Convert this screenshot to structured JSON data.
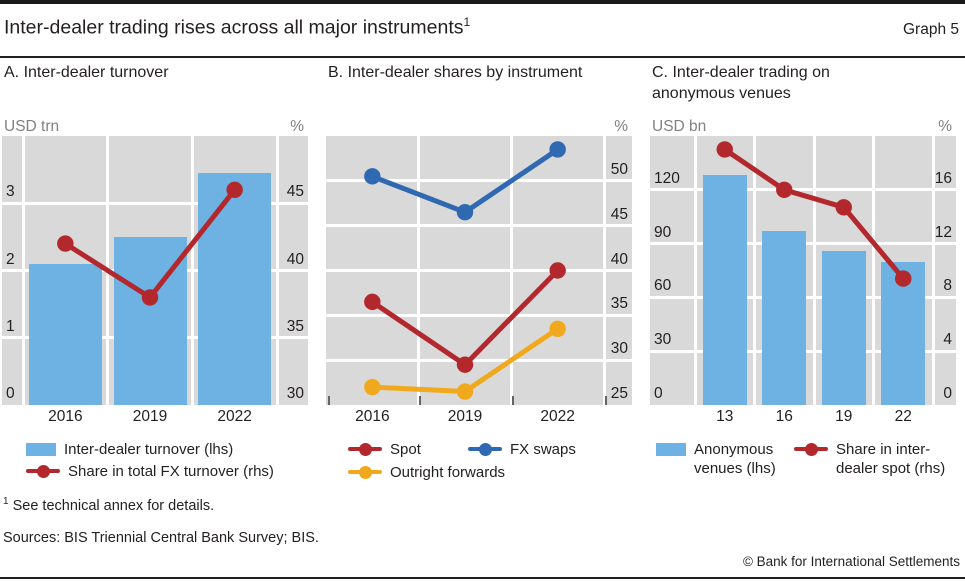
{
  "header": {
    "title": "Inter-dealer trading rises across all major instruments",
    "title_superscript": "1",
    "graph_label": "Graph 5"
  },
  "colors": {
    "bar": "#6eb2e3",
    "red": "#b2282d",
    "blue": "#2f69b1",
    "yellow": "#f0a91d",
    "plot_bg": "#d9d9d9",
    "grid": "#ffffff",
    "text": "#231f20",
    "muted": "#7f8184"
  },
  "chart_data": [
    {
      "type": "bar+line",
      "title": "A. Inter-dealer turnover",
      "unit_left": "USD trn",
      "unit_right": "%",
      "categories": [
        "2016",
        "2019",
        "2022"
      ],
      "bars": {
        "name": "Inter-dealer turnover (lhs)",
        "axis": "left",
        "values": [
          2.1,
          2.5,
          3.45
        ]
      },
      "lines": [
        {
          "name": "Share in total FX turnover (rhs)",
          "axis": "right",
          "color_key": "red",
          "values": [
            42,
            38,
            46
          ]
        }
      ],
      "ylim_left": [
        0,
        4
      ],
      "yticks_left": [
        0,
        1,
        2,
        3
      ],
      "ylim_right": [
        30,
        50
      ],
      "yticks_right": [
        30,
        35,
        40,
        45
      ],
      "grid": true,
      "legend_position": "below"
    },
    {
      "type": "line",
      "title": "B. Inter-dealer shares by instrument",
      "unit_right": "%",
      "categories": [
        "2016",
        "2019",
        "2022"
      ],
      "lines": [
        {
          "name": "Spot",
          "axis": "right",
          "color_key": "red",
          "values": [
            36.5,
            29.5,
            40
          ]
        },
        {
          "name": "FX swaps",
          "axis": "right",
          "color_key": "blue",
          "values": [
            50.5,
            46.5,
            53.5
          ]
        },
        {
          "name": "Outright forwards",
          "axis": "right",
          "color_key": "yellow",
          "values": [
            27,
            26.5,
            33.5
          ]
        }
      ],
      "ylim_right": [
        25,
        55
      ],
      "yticks_right": [
        25,
        30,
        35,
        40,
        45,
        50
      ],
      "grid": true,
      "legend_position": "below"
    },
    {
      "type": "bar+line",
      "title": "C. Inter-dealer trading on anonymous venues",
      "unit_left": "USD bn",
      "unit_right": "%",
      "categories": [
        "13",
        "16",
        "19",
        "22"
      ],
      "bars": {
        "name": "Anonymous venues (lhs)",
        "axis": "left",
        "values": [
          128,
          97,
          86,
          80
        ]
      },
      "lines": [
        {
          "name": "Share in inter-dealer spot (rhs)",
          "axis": "right",
          "color_key": "red",
          "values": [
            19,
            16,
            14.7,
            9.4
          ]
        }
      ],
      "ylim_left": [
        0,
        150
      ],
      "yticks_left": [
        0,
        30,
        60,
        90,
        120
      ],
      "ylim_right": [
        0,
        20
      ],
      "yticks_right": [
        0,
        4,
        8,
        12,
        16
      ],
      "grid": true,
      "legend_position": "below"
    }
  ],
  "footnote": {
    "marker": "1",
    "text": "See technical annex for details."
  },
  "sources": {
    "text": "Sources: BIS Triennial Central Bank Survey; BIS."
  },
  "copyright": {
    "text": "© Bank for International Settlements"
  }
}
